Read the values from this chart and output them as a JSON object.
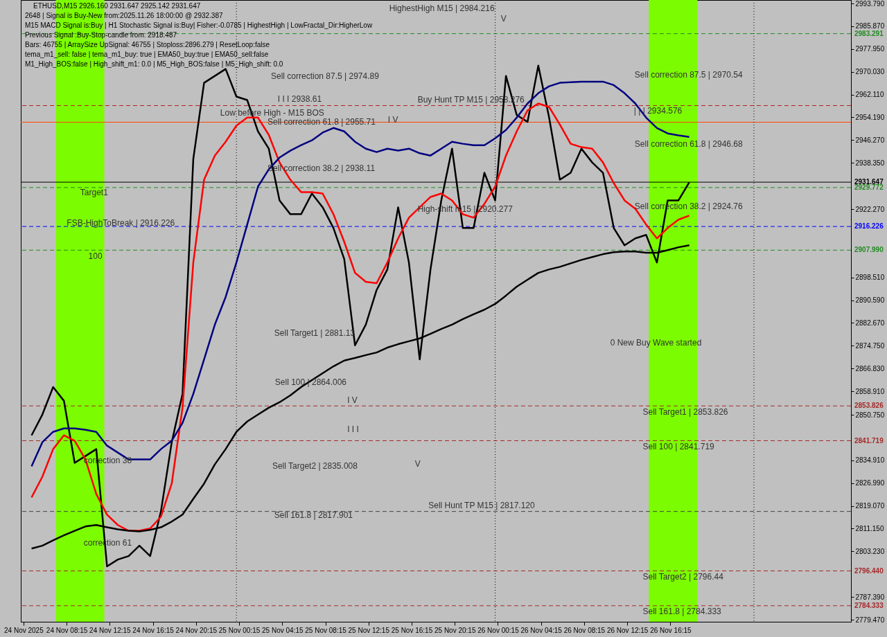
{
  "chart_data": {
    "type": "line",
    "title": "ETHUSD,M15  2926.160 2931.647 2925.142 2931.647",
    "x": [
      "2025-11-24T05:00",
      "2025-11-24T06:00",
      "2025-11-24T07:00",
      "2025-11-24T08:00",
      "2025-11-24T09:00",
      "2025-11-24T10:00",
      "2025-11-24T11:00",
      "2025-11-24T12:00",
      "2025-11-24T13:00",
      "2025-11-24T14:00",
      "2025-11-24T15:00",
      "2025-11-24T16:00",
      "2025-11-24T17:00",
      "2025-11-24T18:00",
      "2025-11-24T19:00",
      "2025-11-24T20:00",
      "2025-11-24T21:00",
      "2025-11-24T22:00",
      "2025-11-24T23:00",
      "2025-11-25T00:00",
      "2025-11-25T01:00",
      "2025-11-25T02:00",
      "2025-11-25T03:00",
      "2025-11-25T04:00",
      "2025-11-25T05:00",
      "2025-11-25T06:00",
      "2025-11-25T07:00",
      "2025-11-25T08:00",
      "2025-11-25T09:00",
      "2025-11-25T10:00",
      "2025-11-25T11:00",
      "2025-11-25T12:00",
      "2025-11-25T13:00",
      "2025-11-25T14:00",
      "2025-11-25T15:00",
      "2025-11-25T16:00",
      "2025-11-25T17:00",
      "2025-11-25T18:00",
      "2025-11-25T19:00",
      "2025-11-25T20:00",
      "2025-11-25T21:00",
      "2025-11-25T22:00",
      "2025-11-25T23:00",
      "2025-11-26T00:00",
      "2025-11-26T01:00",
      "2025-11-26T02:00",
      "2025-11-26T03:00",
      "2025-11-26T04:00",
      "2025-11-26T05:00",
      "2025-11-26T06:00",
      "2025-11-26T07:00",
      "2025-11-26T08:00",
      "2025-11-26T09:00",
      "2025-11-26T10:00",
      "2025-11-26T11:00",
      "2025-11-26T12:00",
      "2025-11-26T13:00",
      "2025-11-26T14:00",
      "2025-11-26T15:00",
      "2025-11-26T16:00",
      "2025-11-26T17:00",
      "2025-11-26T18:00"
    ],
    "series": [
      {
        "color": "#000000",
        "values": [
          2843.6,
          2850.8,
          2860.4,
          2855.6,
          2834.0,
          2836.4,
          2838.8,
          2798.0,
          2800.4,
          2801.6,
          2805.2,
          2801.6,
          2817.2,
          2841.2,
          2858.0,
          2939.7,
          2966.2,
          2968.6,
          2971.0,
          2961.4,
          2960.2,
          2949.3,
          2943.3,
          2925.3,
          2920.5,
          2920.5,
          2927.7,
          2922.9,
          2915.7,
          2904.9,
          2874.9,
          2882.1,
          2894.1,
          2901.3,
          2922.9,
          2903.7,
          2870.0,
          2901.3,
          2925.3,
          2943.3,
          2915.7,
          2915.7,
          2934.9,
          2925.3,
          2968.6,
          2955.0,
          2952.6,
          2972.2,
          2954.2,
          2932.5,
          2934.9,
          2943.3,
          2938.5,
          2934.9,
          2915.7,
          2909.7,
          2912.1,
          2913.3,
          2903.7,
          2925.3,
          2925.3,
          2931.6
        ]
      },
      {
        "color": "#ff0000",
        "values": [
          2822.0,
          2829.2,
          2838.8,
          2843.6,
          2841.7,
          2835.2,
          2823.2,
          2816.0,
          2812.4,
          2810.4,
          2810.4,
          2811.2,
          2815.3,
          2826.8,
          2853.2,
          2903.7,
          2932.5,
          2940.9,
          2945.7,
          2951.3,
          2954.1,
          2954.1,
          2948.1,
          2938.5,
          2932.5,
          2928.2,
          2928.2,
          2927.7,
          2920.5,
          2910.9,
          2900.1,
          2897.0,
          2896.5,
          2903.7,
          2912.1,
          2919.3,
          2922.9,
          2926.5,
          2927.7,
          2925.3,
          2920.5,
          2919.3,
          2924.1,
          2930.1,
          2940.9,
          2949.3,
          2956.6,
          2959.0,
          2957.8,
          2951.7,
          2945.0,
          2943.8,
          2943.3,
          2938.5,
          2931.3,
          2925.3,
          2922.4,
          2916.9,
          2912.1,
          2915.7,
          2918.6,
          2920.0
        ]
      },
      {
        "color": "#000080",
        "values": [
          2832.8,
          2841.2,
          2844.8,
          2846.0,
          2846.0,
          2845.5,
          2844.8,
          2840.0,
          2837.6,
          2835.2,
          2835.2,
          2835.2,
          2838.8,
          2841.7,
          2847.9,
          2858.0,
          2870.0,
          2882.1,
          2891.7,
          2903.7,
          2916.9,
          2930.1,
          2936.1,
          2940.2,
          2942.6,
          2944.5,
          2946.2,
          2948.9,
          2950.5,
          2949.3,
          2945.7,
          2943.3,
          2942.1,
          2943.3,
          2942.6,
          2943.3,
          2941.7,
          2940.9,
          2943.3,
          2945.7,
          2945.0,
          2944.5,
          2944.5,
          2946.9,
          2949.8,
          2954.1,
          2959.0,
          2962.6,
          2965.0,
          2966.2,
          2966.4,
          2966.6,
          2966.6,
          2966.6,
          2965.4,
          2962.6,
          2959.0,
          2954.1,
          2950.5,
          2948.6,
          2947.9,
          2947.4
        ]
      },
      {
        "color": "#000000",
        "values": [
          2804.2,
          2805.2,
          2807.1,
          2808.8,
          2810.4,
          2811.9,
          2812.4,
          2811.6,
          2810.9,
          2810.4,
          2810.2,
          2810.7,
          2811.6,
          2813.6,
          2816.0,
          2821.5,
          2826.8,
          2833.5,
          2838.8,
          2844.8,
          2848.4,
          2850.8,
          2853.2,
          2855.1,
          2857.5,
          2860.4,
          2862.8,
          2865.2,
          2867.6,
          2869.6,
          2870.5,
          2871.5,
          2872.4,
          2874.1,
          2875.3,
          2876.3,
          2877.3,
          2878.9,
          2880.6,
          2882.1,
          2884.0,
          2885.7,
          2887.3,
          2889.3,
          2892.2,
          2895.3,
          2897.7,
          2900.1,
          2901.3,
          2902.2,
          2903.4,
          2904.6,
          2905.6,
          2906.6,
          2907.3,
          2907.5,
          2907.5,
          2907.1,
          2907.1,
          2908.0,
          2909.0,
          2909.7
        ]
      }
    ],
    "xlim": [
      "2025-11-24T04:00",
      "2025-11-27T09:00"
    ],
    "xticks": [
      {
        "value": "2025-11-24T04:15",
        "label": "24 Nov 2025"
      },
      {
        "value": "2025-11-24T08:15",
        "label": "24 Nov 08:15"
      },
      {
        "value": "2025-11-24T12:15",
        "label": "24 Nov 12:15"
      },
      {
        "value": "2025-11-24T16:15",
        "label": "24 Nov 16:15"
      },
      {
        "value": "2025-11-24T20:15",
        "label": "24 Nov 20:15"
      },
      {
        "value": "2025-11-25T00:15",
        "label": "25 Nov 00:15"
      },
      {
        "value": "2025-11-25T04:15",
        "label": "25 Nov 04:15"
      },
      {
        "value": "2025-11-25T08:15",
        "label": "25 Nov 08:15"
      },
      {
        "value": "2025-11-25T12:15",
        "label": "25 Nov 12:15"
      },
      {
        "value": "2025-11-25T16:15",
        "label": "25 Nov 16:15"
      },
      {
        "value": "2025-11-25T20:15",
        "label": "25 Nov 20:15"
      },
      {
        "value": "2025-11-26T00:15",
        "label": "26 Nov 00:15"
      },
      {
        "value": "2025-11-26T04:15",
        "label": "26 Nov 04:15"
      },
      {
        "value": "2025-11-26T08:15",
        "label": "26 Nov 08:15"
      },
      {
        "value": "2025-11-26T12:15",
        "label": "26 Nov 12:15"
      },
      {
        "value": "2025-11-26T16:15",
        "label": "26 Nov 16:15"
      }
    ],
    "ylim": [
      2778.75,
      2995.0
    ],
    "yticks": [
      {
        "value": 2993.79,
        "label": "2993.790"
      },
      {
        "value": 2985.87,
        "label": "2985.870"
      },
      {
        "value": 2977.95,
        "label": "2977.950"
      },
      {
        "value": 2970.03,
        "label": "2970.030"
      },
      {
        "value": 2962.11,
        "label": "2962.110"
      },
      {
        "value": 2954.19,
        "label": "2954.190"
      },
      {
        "value": 2946.27,
        "label": "2946.270"
      },
      {
        "value": 2938.35,
        "label": "2938.350"
      },
      {
        "value": 2922.27,
        "label": "2922.270"
      },
      {
        "value": 2898.51,
        "label": "2898.510"
      },
      {
        "value": 2890.59,
        "label": "2890.590"
      },
      {
        "value": 2882.67,
        "label": "2882.670"
      },
      {
        "value": 2874.75,
        "label": "2874.750"
      },
      {
        "value": 2866.83,
        "label": "2866.830"
      },
      {
        "value": 2858.91,
        "label": "2858.910"
      },
      {
        "value": 2850.75,
        "label": "2850.750"
      },
      {
        "value": 2834.91,
        "label": "2834.910"
      },
      {
        "value": 2826.99,
        "label": "2826.990"
      },
      {
        "value": 2819.07,
        "label": "2819.070"
      },
      {
        "value": 2811.15,
        "label": "2811.150"
      },
      {
        "value": 2803.23,
        "label": "2803.230"
      },
      {
        "value": 2787.39,
        "label": "2787.390"
      },
      {
        "value": 2779.47,
        "label": "2779.470"
      }
    ],
    "bands": [
      {
        "axis": "x",
        "from": "2025-11-24T07:15",
        "to": "2025-11-24T11:45",
        "color": "#7cfc00"
      },
      {
        "axis": "x",
        "from": "2025-11-26T14:15",
        "to": "2025-11-26T18:45",
        "color": "#7cfc00"
      }
    ],
    "ref_lines": [
      {
        "axis": "y",
        "value": 2983.291,
        "label": "2983.291",
        "color": "#228b22",
        "line_style": "dashed"
      },
      {
        "axis": "y",
        "value": 2958.276,
        "color": "#b22222",
        "line_style": "dashed"
      },
      {
        "axis": "y",
        "value": 2952.5,
        "color": "#ff4500",
        "line_style": "solid"
      },
      {
        "axis": "y",
        "value": 2931.647,
        "label": "2931.647",
        "color": "#000000",
        "line_style": "solid"
      },
      {
        "axis": "y",
        "value": 2929.772,
        "label": "2929.772",
        "color": "#228b22",
        "line_style": "dashed"
      },
      {
        "axis": "y",
        "value": 2916.226,
        "label": "2916.226",
        "color": "#0000ff",
        "line_style": "dashed"
      },
      {
        "axis": "y",
        "value": 2907.99,
        "label": "2907.990",
        "color": "#228b22",
        "line_style": "dashed"
      },
      {
        "axis": "y",
        "value": 2853.826,
        "label": "2853.826",
        "color": "#a52a2a",
        "line_style": "dashed"
      },
      {
        "axis": "y",
        "value": 2841.719,
        "label": "2841.719",
        "color": "#a52a2a",
        "line_style": "dashed"
      },
      {
        "axis": "y",
        "value": 2817.12,
        "color": "#404040",
        "line_style": "dashed"
      },
      {
        "axis": "y",
        "value": 2796.44,
        "label": "2796.440",
        "color": "#a52a2a",
        "line_style": "dashed"
      },
      {
        "axis": "y",
        "value": 2784.333,
        "label": "2784.333",
        "color": "#a52a2a",
        "line_style": "dashed"
      },
      {
        "axis": "x",
        "value": "2025-11-25T00:00",
        "color": "#000000",
        "line_style": "dotted"
      },
      {
        "axis": "x",
        "value": "2025-11-26T00:00",
        "color": "#000000",
        "line_style": "dotted"
      },
      {
        "axis": "x",
        "value": "2025-11-27T00:00",
        "color": "#000000",
        "line_style": "dotted"
      }
    ],
    "annotations": [
      "2648 | Signal is Buy-New from:2025.11.26 18:00:00 @ 2932.387",
      "M15 MACD Signal is:Buy | H1 Stochastic Signal is:Buy| Fisher:-0.0785 | HighestHigh | LowFractal_Dir:HigherLow",
      "Previous Signal :Buy-Stop-candle from: 2918.487",
      "Bars: 46755 | ArraySize UpSignal: 46755 | Stoploss:2896.279 | ResetLoop:false",
      "tema_m1_sell: false | tema_m1_buy: true | EMA50_buy:true | EMA50_sell:false",
      "M1_High_BOS:false | High_shift_m1: 0.0 | M5_High_BOS:false | M5_High_shift: 0.0",
      "HighestHigh  M15 | 2984.216",
      "Sell correction 87.5 | 2974.89",
      "I I I 2938.61",
      "Low before High - M15 BOS",
      "Sell correction 61.8 | 2955.71",
      "Sell correction 38.2 | 2938.11",
      "Buy Hunt TP M15 | 2958.276",
      "I V",
      "V",
      "High-shift m15 | 2920.277",
      "Sell Target1 | 2881.13",
      "Sell 100 | 2864.006",
      "I V",
      "I I I",
      "V",
      "Sell Target2 | 2835.008",
      "Sell 161.8 | 2817.901",
      "Sell Hunt TP M15 | 2817.120",
      "| | | 2934.576",
      "Sell correction 87.5 | 2970.54",
      "Sell correction 61.8 | 2946.68",
      "Sell correction 38.2 | 2924.76",
      "0 New Buy Wave started",
      "Sell Target1 | 2853.826",
      "Sell 100 | 2841.719",
      "Sell Target2 | 2796.44",
      "Sell 161.8 | 2784.333",
      "Target1",
      "FSB-HighToBreak | 2916.226",
      "100",
      "correction 38",
      "correction 61"
    ]
  }
}
